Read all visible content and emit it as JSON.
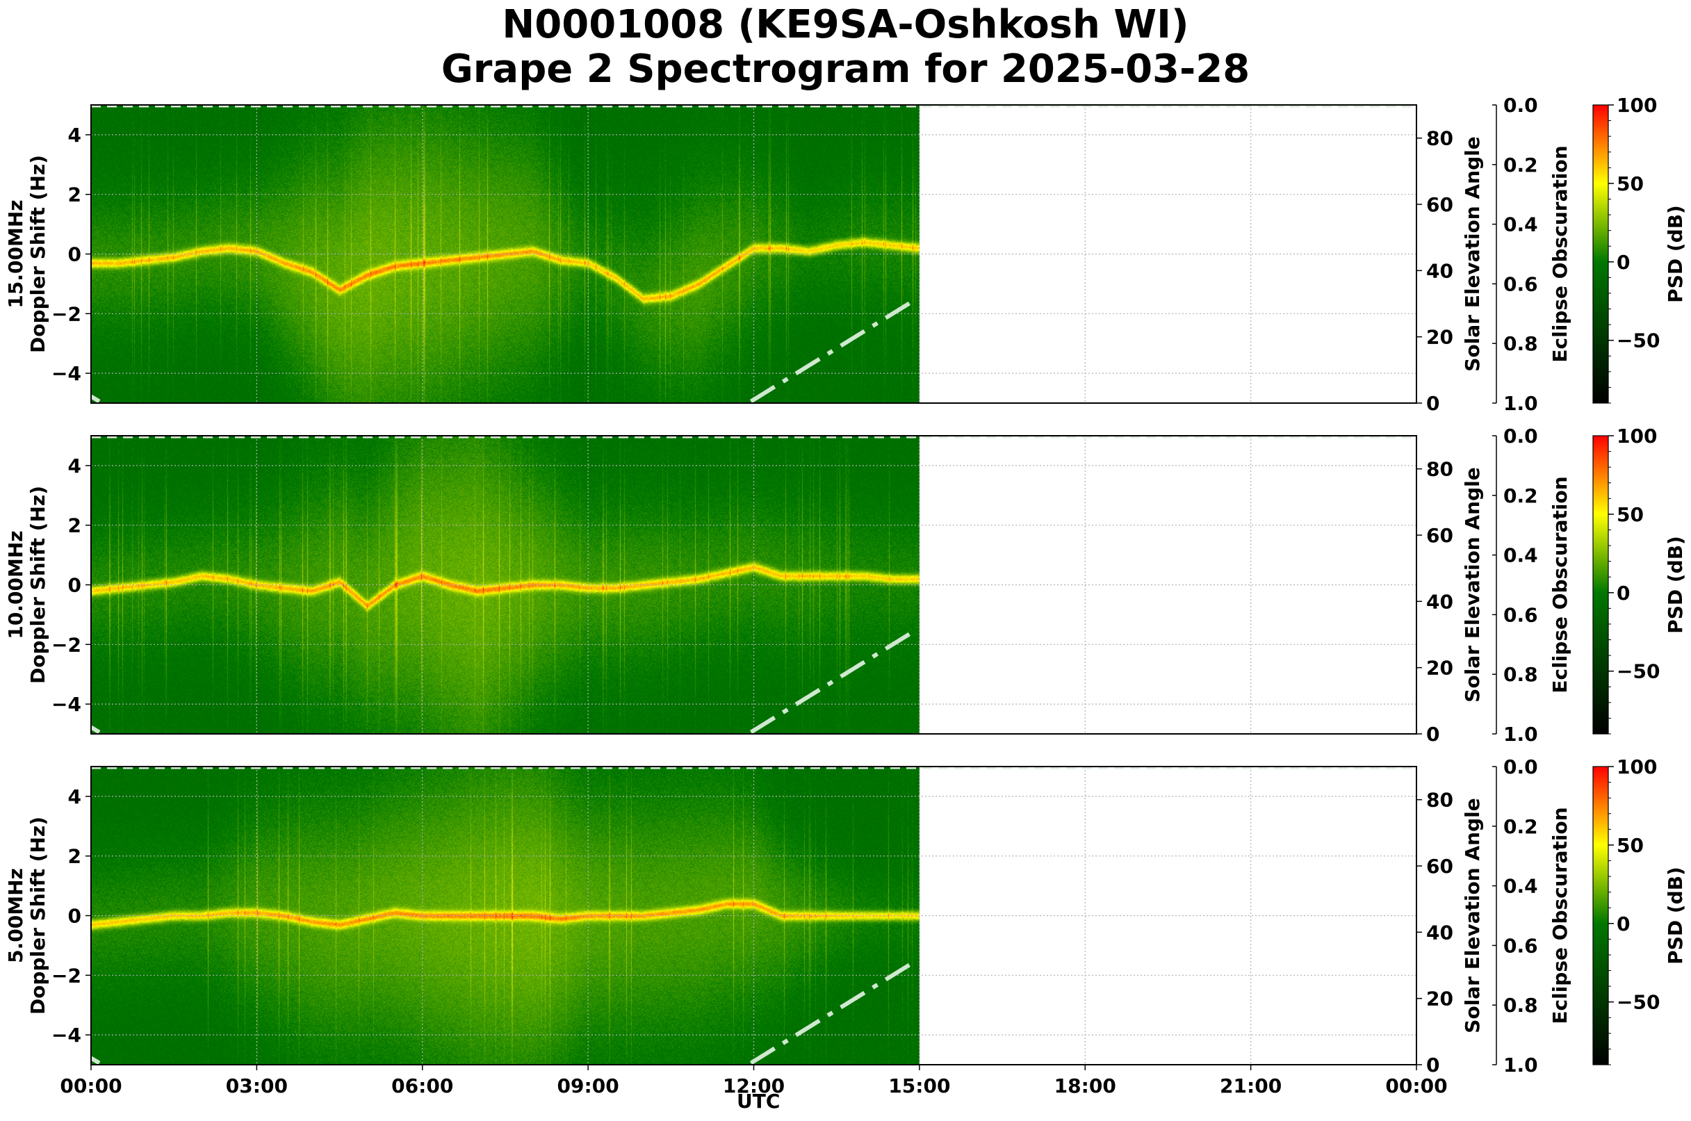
{
  "title": {
    "line1": "N0001008 (KE9SA-Oshkosh WI)",
    "line2": "Grape 2 Spectrogram for 2025-03-28"
  },
  "xaxis": {
    "label": "UTC",
    "ticks": [
      "00:00",
      "03:00",
      "06:00",
      "09:00",
      "12:00",
      "15:00",
      "18:00",
      "21:00",
      "00:00"
    ]
  },
  "colors": {
    "colormap": [
      "#000000",
      "#007800",
      "#ffff00",
      "#ff0000"
    ],
    "solar_line": "#cfe8cf",
    "grid": "#b0b0b0"
  },
  "chart_data": {
    "type": "heatmap",
    "title": "N0001008 (KE9SA-Oshkosh WI) Grape 2 Spectrogram for 2025-03-28",
    "xlabel": "UTC",
    "x_range_hours": [
      0,
      24
    ],
    "data_coverage_hours": [
      0,
      15
    ],
    "grid": true,
    "panels": [
      {
        "frequency_label": "15.00MHz",
        "ylabel": "15.00MHz\nDoppler Shift (Hz)",
        "ylim": [
          -5,
          5
        ],
        "yticks": [
          "4",
          "2",
          "0",
          "−2",
          "−4"
        ],
        "yticks_values": [
          4,
          2,
          0,
          -2,
          -4
        ],
        "main_trace_hz": {
          "hours": [
            0,
            0.5,
            1,
            1.5,
            2,
            2.5,
            3,
            3.5,
            4,
            4.5,
            5,
            5.5,
            6,
            6.5,
            7,
            7.5,
            8,
            8.5,
            9,
            9.5,
            10,
            10.5,
            11,
            11.5,
            12,
            12.5,
            13,
            13.5,
            14,
            14.5,
            15
          ],
          "values": [
            -0.3,
            -0.3,
            -0.2,
            -0.1,
            0.1,
            0.2,
            0.1,
            -0.3,
            -0.6,
            -1.2,
            -0.7,
            -0.4,
            -0.3,
            -0.2,
            -0.1,
            0.0,
            0.1,
            -0.2,
            -0.3,
            -0.8,
            -1.5,
            -1.4,
            -1.0,
            -0.4,
            0.2,
            0.2,
            0.1,
            0.3,
            0.4,
            0.3,
            0.2
          ]
        }
      },
      {
        "frequency_label": "10.00MHz",
        "ylabel": "10.00MHz\nDoppler Shift (Hz)",
        "ylim": [
          -5,
          5
        ],
        "yticks": [
          "4",
          "2",
          "0",
          "−2",
          "−4"
        ],
        "yticks_values": [
          4,
          2,
          0,
          -2,
          -4
        ],
        "main_trace_hz": {
          "hours": [
            0,
            0.5,
            1,
            1.5,
            2,
            2.5,
            3,
            3.5,
            4,
            4.5,
            5,
            5.5,
            6,
            6.5,
            7,
            7.5,
            8,
            8.5,
            9,
            9.5,
            10,
            10.5,
            11,
            11.5,
            12,
            12.5,
            13,
            13.5,
            14,
            14.5,
            15
          ],
          "values": [
            -0.2,
            -0.1,
            0.0,
            0.1,
            0.3,
            0.2,
            0.0,
            -0.1,
            -0.2,
            0.1,
            -0.7,
            0.0,
            0.3,
            0.0,
            -0.2,
            -0.1,
            0.0,
            0.0,
            -0.1,
            -0.1,
            0.0,
            0.1,
            0.2,
            0.4,
            0.6,
            0.3,
            0.3,
            0.3,
            0.3,
            0.2,
            0.2
          ]
        }
      },
      {
        "frequency_label": "5.00MHz",
        "ylabel": "5.00MHz\nDoppler Shift (Hz)",
        "ylim": [
          -5,
          5
        ],
        "yticks": [
          "4",
          "2",
          "0",
          "−2",
          "−4"
        ],
        "yticks_values": [
          4,
          2,
          0,
          -2,
          -4
        ],
        "main_trace_hz": {
          "hours": [
            0,
            0.5,
            1,
            1.5,
            2,
            2.5,
            3,
            3.5,
            4,
            4.5,
            5,
            5.5,
            6,
            6.5,
            7,
            7.5,
            8,
            8.5,
            9,
            9.5,
            10,
            10.5,
            11,
            11.5,
            12,
            12.5,
            13,
            13.5,
            14,
            14.5,
            15
          ],
          "values": [
            -0.3,
            -0.2,
            -0.1,
            0.0,
            0.0,
            0.1,
            0.1,
            0.0,
            -0.2,
            -0.3,
            -0.1,
            0.1,
            0.0,
            0.0,
            0.0,
            0.0,
            0.0,
            -0.1,
            0.0,
            0.0,
            0.0,
            0.1,
            0.2,
            0.4,
            0.4,
            0.0,
            0.0,
            0.0,
            0.0,
            0.0,
            0.0
          ]
        }
      }
    ],
    "solar_elevation_axis": {
      "label": "Solar Elevation Angle",
      "ylim": [
        0,
        90
      ],
      "ticks": [
        "0",
        "20",
        "40",
        "60",
        "80"
      ],
      "tick_values": [
        0,
        20,
        40,
        60,
        80
      ],
      "series": {
        "hours": [
          0,
          0.2,
          11.9,
          15
        ],
        "values": [
          2,
          0,
          0,
          32
        ]
      }
    },
    "eclipse_axis": {
      "label": "Eclipse Obscuration",
      "ylim": [
        1.0,
        0.0
      ],
      "ticks": [
        "0.0",
        "0.2",
        "0.4",
        "0.6",
        "0.8",
        "1.0"
      ],
      "value": 0.0
    },
    "colorbar": {
      "label": "PSD (dB)",
      "range": [
        -90,
        100
      ],
      "ticks": [
        "100",
        "50",
        "0",
        "−50"
      ],
      "tick_values": [
        100,
        50,
        0,
        -50
      ]
    }
  }
}
